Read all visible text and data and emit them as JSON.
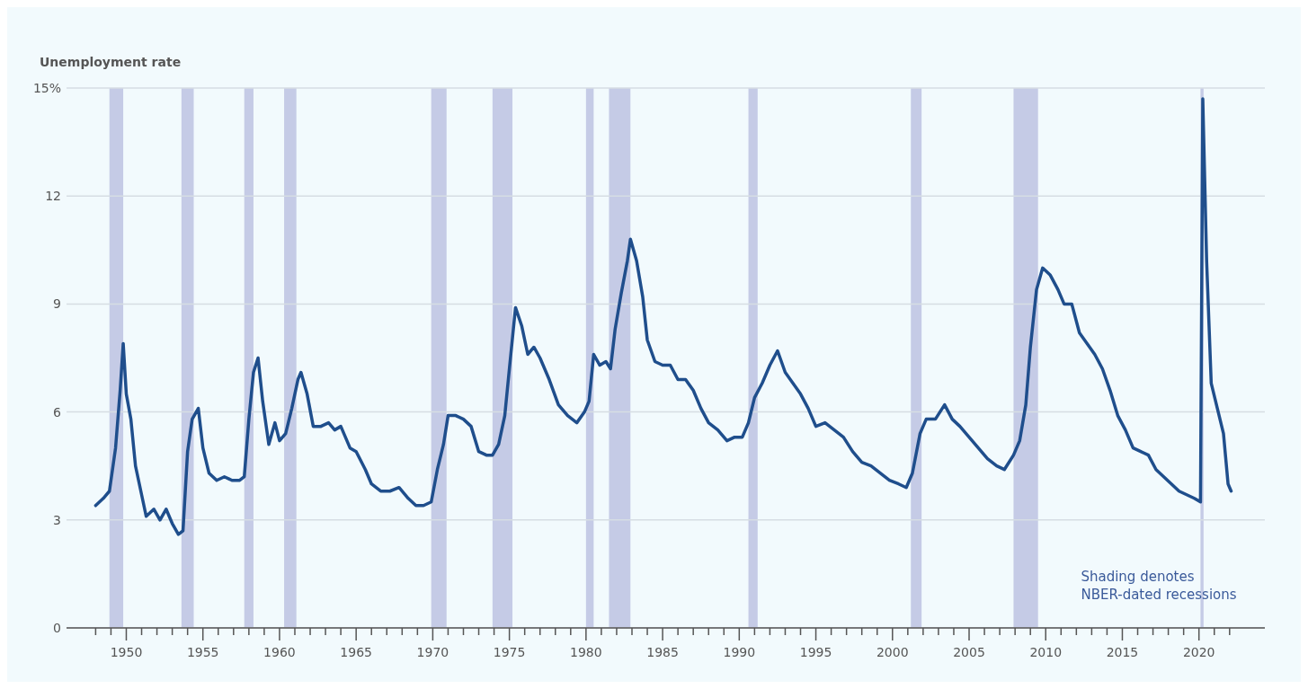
{
  "chart_data": {
    "type": "line",
    "ylabel": "Unemployment rate",
    "annotations": [
      "Shading denotes\nNBER-dated recessions"
    ],
    "xlim": [
      1946.1,
      2024.3
    ],
    "xticks": [
      {
        "value": 1948,
        "label": null
      },
      {
        "value": 1949,
        "label": null
      },
      1950,
      {
        "value": 1951,
        "label": null
      },
      {
        "value": 1952,
        "label": null
      },
      {
        "value": 1953,
        "label": null
      },
      {
        "value": 1954,
        "label": null
      },
      1955,
      {
        "value": 1956,
        "label": null
      },
      {
        "value": 1957,
        "label": null
      },
      {
        "value": 1958,
        "label": null
      },
      {
        "value": 1959,
        "label": null
      },
      1960,
      {
        "value": 1961,
        "label": null
      },
      {
        "value": 1962,
        "label": null
      },
      {
        "value": 1963,
        "label": null
      },
      {
        "value": 1964,
        "label": null
      },
      1965,
      {
        "value": 1966,
        "label": null
      },
      {
        "value": 1967,
        "label": null
      },
      {
        "value": 1968,
        "label": null
      },
      {
        "value": 1969,
        "label": null
      },
      1970,
      {
        "value": 1971,
        "label": null
      },
      {
        "value": 1972,
        "label": null
      },
      {
        "value": 1973,
        "label": null
      },
      {
        "value": 1974,
        "label": null
      },
      1975,
      {
        "value": 1976,
        "label": null
      },
      {
        "value": 1977,
        "label": null
      },
      {
        "value": 1978,
        "label": null
      },
      {
        "value": 1979,
        "label": null
      },
      1980,
      {
        "value": 1981,
        "label": null
      },
      {
        "value": 1982,
        "label": null
      },
      {
        "value": 1983,
        "label": null
      },
      {
        "value": 1984,
        "label": null
      },
      1985,
      {
        "value": 1986,
        "label": null
      },
      {
        "value": 1987,
        "label": null
      },
      {
        "value": 1988,
        "label": null
      },
      {
        "value": 1989,
        "label": null
      },
      1990,
      {
        "value": 1991,
        "label": null
      },
      {
        "value": 1992,
        "label": null
      },
      {
        "value": 1993,
        "label": null
      },
      {
        "value": 1994,
        "label": null
      },
      1995,
      {
        "value": 1996,
        "label": null
      },
      {
        "value": 1997,
        "label": null
      },
      {
        "value": 1998,
        "label": null
      },
      {
        "value": 1999,
        "label": null
      },
      2000,
      {
        "value": 2001,
        "label": null
      },
      {
        "value": 2002,
        "label": null
      },
      {
        "value": 2003,
        "label": null
      },
      {
        "value": 2004,
        "label": null
      },
      2005,
      {
        "value": 2006,
        "label": null
      },
      {
        "value": 2007,
        "label": null
      },
      {
        "value": 2008,
        "label": null
      },
      {
        "value": 2009,
        "label": null
      },
      2010,
      {
        "value": 2011,
        "label": null
      },
      {
        "value": 2012,
        "label": null
      },
      {
        "value": 2013,
        "label": null
      },
      {
        "value": 2014,
        "label": null
      },
      2015,
      {
        "value": 2016,
        "label": null
      },
      {
        "value": 2017,
        "label": null
      },
      {
        "value": 2018,
        "label": null
      },
      {
        "value": 2019,
        "label": null
      },
      2020,
      {
        "value": 2021,
        "label": null
      },
      {
        "value": 2022,
        "label": null
      }
    ],
    "ylim": [
      0,
      15
    ],
    "yticks": [
      0,
      3,
      6,
      9,
      12,
      {
        "value": 15,
        "label": "15%"
      }
    ],
    "grid": "y",
    "marker": "none",
    "line_style": "solid",
    "bands": [
      {
        "axis": "x",
        "from": 1948.9,
        "to": 1949.8,
        "color": "#c5cbe6"
      },
      {
        "axis": "x",
        "from": 1953.6,
        "to": 1954.4,
        "color": "#c5cbe6"
      },
      {
        "axis": "x",
        "from": 1957.7,
        "to": 1958.3,
        "color": "#c5cbe6"
      },
      {
        "axis": "x",
        "from": 1960.3,
        "to": 1961.1,
        "color": "#c5cbe6"
      },
      {
        "axis": "x",
        "from": 1969.9,
        "to": 1970.9,
        "color": "#c5cbe6"
      },
      {
        "axis": "x",
        "from": 1973.9,
        "to": 1975.2,
        "color": "#c5cbe6"
      },
      {
        "axis": "x",
        "from": 1980.0,
        "to": 1980.5,
        "color": "#c5cbe6"
      },
      {
        "axis": "x",
        "from": 1981.5,
        "to": 1982.9,
        "color": "#c5cbe6"
      },
      {
        "axis": "x",
        "from": 1990.6,
        "to": 1991.2,
        "color": "#c5cbe6"
      },
      {
        "axis": "x",
        "from": 2001.2,
        "to": 2001.9,
        "color": "#c5cbe6"
      },
      {
        "axis": "x",
        "from": 2007.9,
        "to": 2009.5,
        "color": "#c5cbe6"
      },
      {
        "axis": "x",
        "from": 2020.1,
        "to": 2020.3,
        "color": "#c5cbe6"
      }
    ],
    "series": [
      {
        "color": "#1f4e8c",
        "x": [
          1948.0,
          1948.5,
          1948.9,
          1949.3,
          1949.6,
          1949.8,
          1950.0,
          1950.3,
          1950.6,
          1951.0,
          1951.3,
          1951.8,
          1952.2,
          1952.6,
          1953.0,
          1953.4,
          1953.7,
          1954.0,
          1954.3,
          1954.7,
          1955.0,
          1955.4,
          1955.9,
          1956.4,
          1956.9,
          1957.4,
          1957.7,
          1958.0,
          1958.3,
          1958.6,
          1958.9,
          1959.3,
          1959.7,
          1960.0,
          1960.4,
          1960.8,
          1961.2,
          1961.4,
          1961.8,
          1962.2,
          1962.7,
          1963.2,
          1963.6,
          1964.0,
          1964.6,
          1965.0,
          1965.6,
          1966.0,
          1966.6,
          1967.2,
          1967.8,
          1968.4,
          1968.9,
          1969.4,
          1969.9,
          1970.3,
          1970.7,
          1971.0,
          1971.5,
          1972.0,
          1972.5,
          1973.0,
          1973.5,
          1973.9,
          1974.3,
          1974.7,
          1975.0,
          1975.4,
          1975.8,
          1976.2,
          1976.6,
          1977.0,
          1977.6,
          1978.2,
          1978.8,
          1979.4,
          1979.9,
          1980.2,
          1980.5,
          1980.9,
          1981.3,
          1981.6,
          1981.9,
          1982.3,
          1982.7,
          1982.9,
          1983.3,
          1983.7,
          1984.0,
          1984.5,
          1985.0,
          1985.5,
          1986.0,
          1986.5,
          1987.0,
          1987.5,
          1988.0,
          1988.6,
          1989.2,
          1989.7,
          1990.2,
          1990.6,
          1991.0,
          1991.5,
          1992.0,
          1992.5,
          1993.0,
          1993.5,
          1994.0,
          1994.5,
          1995.0,
          1995.6,
          1996.2,
          1996.8,
          1997.4,
          1998.0,
          1998.6,
          1999.2,
          1999.8,
          2000.4,
          2000.9,
          2001.3,
          2001.8,
          2002.2,
          2002.8,
          2003.4,
          2003.9,
          2004.4,
          2005.0,
          2005.6,
          2006.2,
          2006.8,
          2007.3,
          2007.9,
          2008.3,
          2008.7,
          2009.0,
          2009.4,
          2009.8,
          2010.3,
          2010.8,
          2011.2,
          2011.7,
          2012.2,
          2012.7,
          2013.2,
          2013.7,
          2014.2,
          2014.7,
          2015.2,
          2015.7,
          2016.2,
          2016.7,
          2017.2,
          2017.7,
          2018.2,
          2018.7,
          2019.2,
          2019.7,
          2020.1,
          2020.25,
          2020.5,
          2020.8,
          2021.2,
          2021.6,
          2021.9,
          2022.1
        ],
        "values": [
          3.4,
          3.6,
          3.8,
          5.0,
          6.6,
          7.9,
          6.5,
          5.8,
          4.5,
          3.7,
          3.1,
          3.3,
          3.0,
          3.3,
          2.9,
          2.6,
          2.7,
          4.9,
          5.8,
          6.1,
          5.0,
          4.3,
          4.1,
          4.2,
          4.1,
          4.1,
          4.2,
          5.8,
          7.1,
          7.5,
          6.3,
          5.1,
          5.7,
          5.2,
          5.4,
          6.1,
          6.9,
          7.1,
          6.5,
          5.6,
          5.6,
          5.7,
          5.5,
          5.6,
          5.0,
          4.9,
          4.4,
          4.0,
          3.8,
          3.8,
          3.9,
          3.6,
          3.4,
          3.4,
          3.5,
          4.4,
          5.1,
          5.9,
          5.9,
          5.8,
          5.6,
          4.9,
          4.8,
          4.8,
          5.1,
          5.9,
          7.2,
          8.9,
          8.4,
          7.6,
          7.8,
          7.5,
          6.9,
          6.2,
          5.9,
          5.7,
          6.0,
          6.3,
          7.6,
          7.3,
          7.4,
          7.2,
          8.3,
          9.3,
          10.2,
          10.8,
          10.2,
          9.2,
          8.0,
          7.4,
          7.3,
          7.3,
          6.9,
          6.9,
          6.6,
          6.1,
          5.7,
          5.5,
          5.2,
          5.3,
          5.3,
          5.7,
          6.4,
          6.8,
          7.3,
          7.7,
          7.1,
          6.8,
          6.5,
          6.1,
          5.6,
          5.7,
          5.5,
          5.3,
          4.9,
          4.6,
          4.5,
          4.3,
          4.1,
          4.0,
          3.9,
          4.3,
          5.4,
          5.8,
          5.8,
          6.2,
          5.8,
          5.6,
          5.3,
          5.0,
          4.7,
          4.5,
          4.4,
          4.8,
          5.2,
          6.2,
          7.8,
          9.4,
          10.0,
          9.8,
          9.4,
          9.0,
          9.0,
          8.2,
          7.9,
          7.6,
          7.2,
          6.6,
          5.9,
          5.5,
          5.0,
          4.9,
          4.8,
          4.4,
          4.2,
          4.0,
          3.8,
          3.7,
          3.6,
          3.5,
          14.7,
          10.2,
          6.8,
          6.1,
          5.4,
          4.0,
          3.8
        ]
      }
    ]
  }
}
